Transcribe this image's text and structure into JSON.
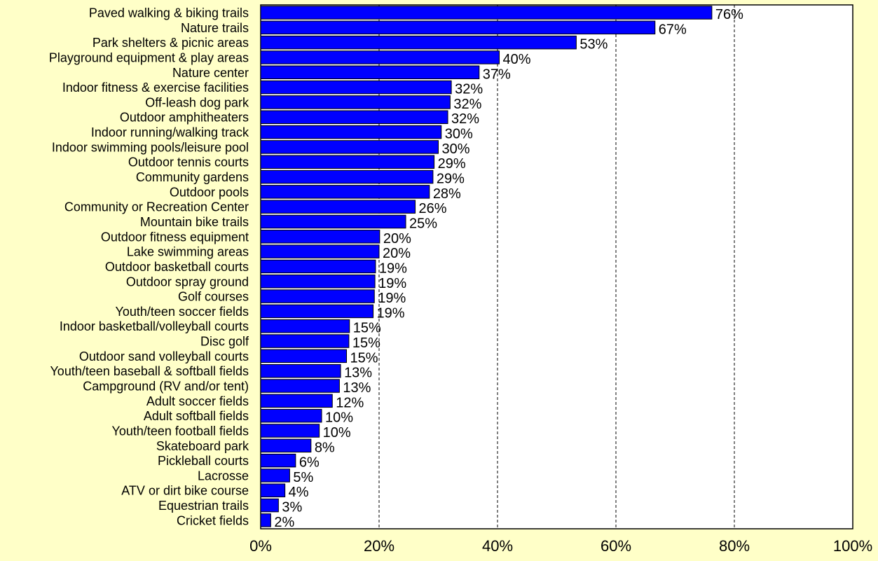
{
  "chart_data": {
    "type": "bar",
    "orientation": "horizontal",
    "categories": [
      "Paved walking & biking trails",
      "Nature trails",
      "Park shelters & picnic areas",
      "Playground equipment & play areas",
      "Nature center",
      "Indoor fitness & exercise facilities",
      "Off-leash dog park",
      "Outdoor amphitheaters",
      "Indoor running/walking track",
      "Indoor swimming pools/leisure pool",
      "Outdoor tennis courts",
      "Community gardens",
      "Outdoor pools",
      "Community or Recreation Center",
      "Mountain bike trails",
      "Outdoor fitness equipment",
      "Lake swimming areas",
      "Outdoor basketball courts",
      "Outdoor spray ground",
      "Golf courses",
      "Youth/teen soccer fields",
      "Indoor basketball/volleyball courts",
      "Disc golf",
      "Outdoor sand volleyball courts",
      "Youth/teen baseball & softball fields",
      "Campground (RV and/or tent)",
      "Adult soccer fields",
      "Adult softball fields",
      "Youth/teen football fields",
      "Skateboard park",
      "Pickleball courts",
      "Lacrosse",
      "ATV or dirt bike course",
      "Equestrian trails",
      "Cricket fields"
    ],
    "values": [
      76,
      67,
      53,
      40,
      37,
      32,
      32,
      32,
      30,
      30,
      29,
      29,
      28,
      26,
      25,
      20,
      20,
      19,
      19,
      19,
      19,
      15,
      15,
      15,
      13,
      13,
      12,
      10,
      10,
      8,
      6,
      5,
      4,
      3,
      2
    ],
    "bar_lengths": [
      76.2,
      66.6,
      53.3,
      40.3,
      36.9,
      32.2,
      32.0,
      31.6,
      30.5,
      30.0,
      29.3,
      29.1,
      28.5,
      26.1,
      24.5,
      20.1,
      20.0,
      19.4,
      19.3,
      19.2,
      19.0,
      15.0,
      14.9,
      14.5,
      13.5,
      13.3,
      12.1,
      10.3,
      9.9,
      8.5,
      5.9,
      4.9,
      4.1,
      3.0,
      1.7
    ],
    "value_labels": [
      "76%",
      "67%",
      "53%",
      "40%",
      "37%",
      "32%",
      "32%",
      "32%",
      "30%",
      "30%",
      "29%",
      "29%",
      "28%",
      "26%",
      "25%",
      "20%",
      "20%",
      "19%",
      "19%",
      "19%",
      "19%",
      "15%",
      "15%",
      "15%",
      "13%",
      "13%",
      "12%",
      "10%",
      "10%",
      "8%",
      "6%",
      "5%",
      "4%",
      "3%",
      "2%"
    ],
    "xlim": [
      0,
      100
    ],
    "x_ticks": [
      "0%",
      "20%",
      "40%",
      "60%",
      "80%",
      "100%"
    ],
    "grid": "vertical dashed at 20% intervals",
    "title": "",
    "xlabel": "",
    "ylabel": "",
    "legend": "none",
    "colors": {
      "background": "#ffffc8",
      "plot_area": "#ffffff",
      "bar": "#0000ff",
      "bar_outline": "#000000",
      "text": "#000000"
    }
  }
}
